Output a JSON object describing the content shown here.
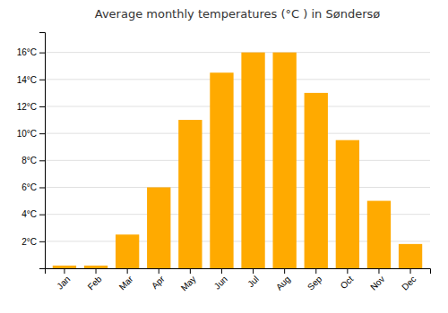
{
  "chart_data": {
    "type": "bar",
    "title": "Average monthly temperatures (°C ) in Søndersø",
    "categories": [
      "Jan",
      "Feb",
      "Mar",
      "Apr",
      "May",
      "Jun",
      "Jul",
      "Aug",
      "Sep",
      "Oct",
      "Nov",
      "Dec"
    ],
    "values": [
      0.2,
      0.2,
      2.5,
      6.0,
      11.0,
      14.5,
      16.0,
      16.0,
      13.0,
      9.5,
      5.0,
      1.8
    ],
    "color": "#FFAA00",
    "ylim": [
      0,
      17.5
    ],
    "yticks": [
      {
        "value": 0,
        "label": null
      },
      {
        "value": 2,
        "label": "2°C"
      },
      {
        "value": 4,
        "label": "4°C"
      },
      {
        "value": 6,
        "label": "6°C"
      },
      {
        "value": 8,
        "label": "8°C"
      },
      {
        "value": 10,
        "label": "10°C"
      },
      {
        "value": 12,
        "label": "12°C"
      },
      {
        "value": 14,
        "label": "14°C"
      },
      {
        "value": 16,
        "label": "16°C"
      }
    ],
    "grid": true
  }
}
